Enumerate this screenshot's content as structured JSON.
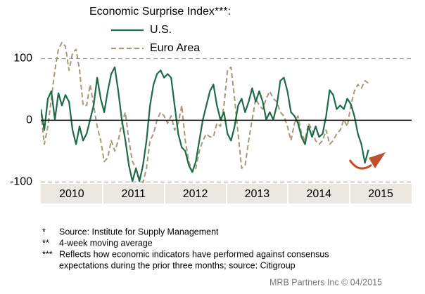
{
  "chart_data": {
    "type": "line",
    "title": "Economic Surprise Index***:",
    "x": [
      2010,
      2010.057,
      2010.114,
      2010.171,
      2010.228,
      2010.285,
      2010.342,
      2010.399,
      2010.456,
      2010.513,
      2010.57,
      2010.627,
      2010.684,
      2010.741,
      2010.798,
      2010.855,
      2010.912,
      2010.969,
      2011.026,
      2011.083,
      2011.14,
      2011.197,
      2011.254,
      2011.311,
      2011.368,
      2011.425,
      2011.482,
      2011.539,
      2011.596,
      2011.653,
      2011.71,
      2011.767,
      2011.824,
      2011.881,
      2011.938,
      2011.995,
      2012.052,
      2012.109,
      2012.166,
      2012.223,
      2012.28,
      2012.337,
      2012.394,
      2012.451,
      2012.508,
      2012.565,
      2012.622,
      2012.679,
      2012.736,
      2012.793,
      2012.85,
      2012.907,
      2012.964,
      2013.021,
      2013.078,
      2013.135,
      2013.192,
      2013.249,
      2013.306,
      2013.363,
      2013.42,
      2013.477,
      2013.534,
      2013.591,
      2013.648,
      2013.705,
      2013.762,
      2013.819,
      2013.876,
      2013.933,
      2013.99,
      2014.047,
      2014.104,
      2014.161,
      2014.218,
      2014.275,
      2014.332,
      2014.389,
      2014.446,
      2014.503,
      2014.56,
      2014.617,
      2014.674,
      2014.731,
      2014.788,
      2014.845,
      2014.902,
      2014.959,
      2015.016,
      2015.073,
      2015.13,
      2015.187,
      2015.244,
      2015.301
    ],
    "series": [
      {
        "name": "U.S.",
        "color": "#1d6b47",
        "dash": false,
        "values": [
          18,
          -16,
          35,
          47,
          1,
          44,
          24,
          41,
          30,
          -16,
          -39,
          -10,
          -33,
          -22,
          1,
          24,
          69,
          35,
          13,
          47,
          75,
          86,
          47,
          1,
          -33,
          -73,
          -99,
          -78,
          -99,
          -73,
          -33,
          24,
          58,
          75,
          81,
          69,
          75,
          69,
          24,
          -22,
          -44,
          -50,
          -73,
          -84,
          -67,
          -33,
          1,
          24,
          47,
          58,
          24,
          1,
          13,
          -22,
          -33,
          -10,
          24,
          35,
          13,
          30,
          52,
          30,
          47,
          30,
          1,
          13,
          1,
          24,
          64,
          69,
          47,
          13,
          7,
          -5,
          -27,
          -39,
          -10,
          -27,
          -10,
          -27,
          -22,
          7,
          49,
          41,
          18,
          24,
          18,
          35,
          26,
          7,
          -22,
          -39,
          -69,
          -48
        ]
      },
      {
        "name": "Euro Area",
        "color": "#a8987a",
        "dash": true,
        "values": [
          13,
          -39,
          -10,
          35,
          81,
          115,
          126,
          120,
          81,
          109,
          115,
          81,
          24,
          24,
          58,
          24,
          -10,
          -33,
          -67,
          -61,
          -33,
          -50,
          -33,
          -5,
          13,
          -33,
          -67,
          -78,
          -95,
          -101,
          -78,
          -33,
          -22,
          1,
          13,
          7,
          -5,
          7,
          -16,
          -5,
          24,
          -33,
          -67,
          -84,
          -78,
          -50,
          -33,
          -22,
          -27,
          -27,
          -5,
          -10,
          24,
          81,
          86,
          35,
          -22,
          -78,
          -73,
          -33,
          1,
          35,
          24,
          18,
          35,
          47,
          35,
          30,
          13,
          7,
          -10,
          -33,
          -5,
          7,
          -22,
          -33,
          -5,
          -16,
          -33,
          -39,
          -33,
          -16,
          -39,
          -33,
          -22,
          -16,
          1,
          -10,
          24,
          47,
          58,
          52,
          64,
          60
        ]
      }
    ],
    "xlim": [
      2010,
      2016
    ],
    "ylim": [
      -110,
      195
    ],
    "xticks": [
      {
        "value": 2010.5,
        "label": "2010"
      },
      {
        "value": 2011.5,
        "label": "2011"
      },
      {
        "value": 2012.5,
        "label": "2012"
      },
      {
        "value": 2013.5,
        "label": "2013"
      },
      {
        "value": 2014.5,
        "label": "2014"
      },
      {
        "value": 2015.5,
        "label": "2015"
      }
    ],
    "yticks": [
      -100,
      0,
      100
    ],
    "grid": true,
    "footnotes": [
      {
        "marker": "*",
        "text": "Source: Institute for Supply Management"
      },
      {
        "marker": "**",
        "text": "4-week moving average"
      },
      {
        "marker": "***",
        "text": "Reflects how economic indicators have performed against consensus"
      },
      {
        "marker": "",
        "text": "expectations during the prior three months; source: Citigroup"
      }
    ],
    "source": "MRB Partners Inc © 04/2015"
  }
}
